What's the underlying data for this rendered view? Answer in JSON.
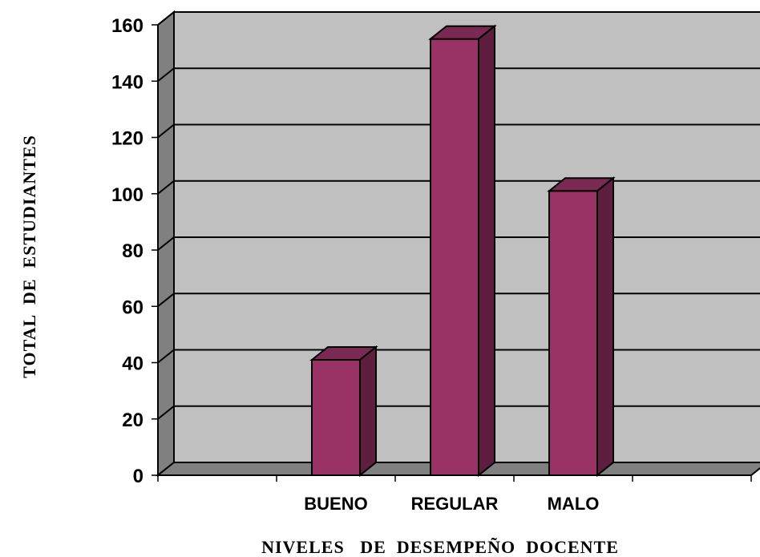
{
  "chart_data": {
    "type": "bar",
    "categories": [
      "",
      "BUENO",
      "REGULAR",
      "MALO",
      ""
    ],
    "values": [
      0,
      41,
      155,
      101,
      0
    ],
    "xlabel": "NIVELES   DE  DESEMPEÑO  DOCENTE",
    "ylabel": "TOTAL  DE  ESTUDIANTES",
    "ylim": [
      0,
      160
    ],
    "yticks": [
      0,
      20,
      40,
      60,
      80,
      100,
      120,
      140,
      160
    ],
    "grid": true,
    "style": "3d-column",
    "colors": {
      "bar_front": "#993366",
      "bar_top": "#7a2952",
      "bar_side": "#5e1f3f",
      "wall": "#c0c0c0",
      "floor": "#808080",
      "side_wall": "#808080"
    }
  }
}
